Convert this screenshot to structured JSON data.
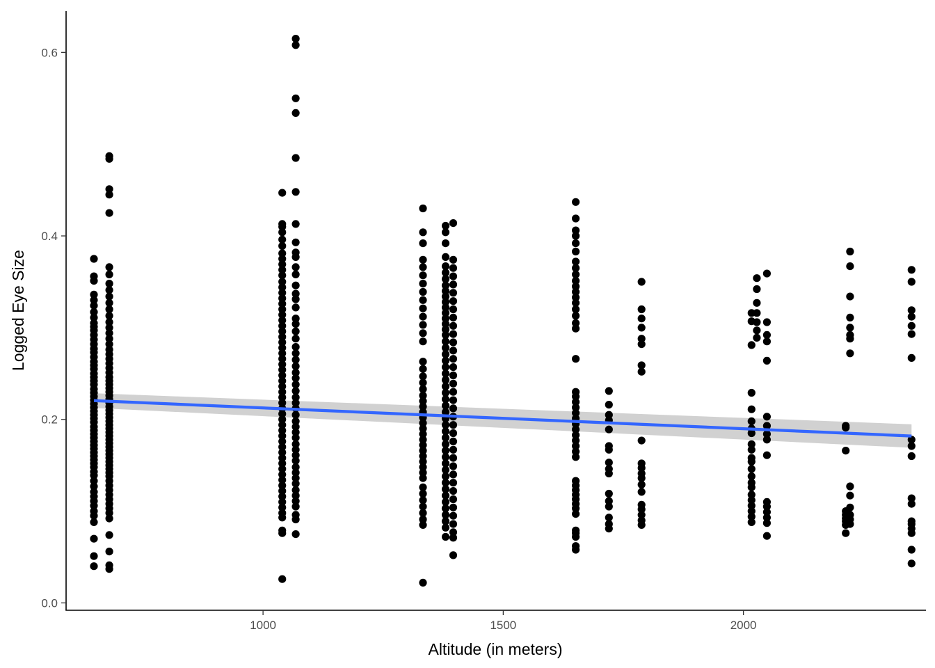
{
  "chart_data": {
    "type": "scatter",
    "title": "",
    "xlabel": "Altitude (in meters)",
    "ylabel": "Logged Eye Size",
    "xlim": [
      590,
      2380
    ],
    "ylim": [
      -0.008,
      0.645
    ],
    "x_ticks": [
      1000,
      1500,
      2000
    ],
    "x_tick_labels": [
      "1000",
      "1500",
      "2000"
    ],
    "y_ticks": [
      0.0,
      0.2,
      0.4,
      0.6
    ],
    "y_tick_labels": [
      "0.0",
      "0.2",
      "0.4",
      "0.6"
    ],
    "grid": false,
    "legend": "none",
    "point_color": "#000000",
    "groups": [
      {
        "x": 648,
        "y": [
          0.375,
          0.356,
          0.351,
          0.336,
          0.33,
          0.324,
          0.317,
          0.311,
          0.305,
          0.301,
          0.297,
          0.292,
          0.287,
          0.282,
          0.277,
          0.273,
          0.268,
          0.263,
          0.259,
          0.255,
          0.25,
          0.246,
          0.242,
          0.238,
          0.233,
          0.229,
          0.225,
          0.221,
          0.217,
          0.213,
          0.209,
          0.205,
          0.201,
          0.197,
          0.192,
          0.188,
          0.184,
          0.18,
          0.176,
          0.172,
          0.168,
          0.164,
          0.16,
          0.156,
          0.152,
          0.148,
          0.143,
          0.139,
          0.133,
          0.127,
          0.121,
          0.116,
          0.111,
          0.106,
          0.1,
          0.095,
          0.088,
          0.07,
          0.051,
          0.04
        ]
      },
      {
        "x": 680,
        "y": [
          0.487,
          0.484,
          0.451,
          0.445,
          0.425,
          0.366,
          0.358,
          0.348,
          0.341,
          0.334,
          0.327,
          0.32,
          0.313,
          0.306,
          0.3,
          0.294,
          0.288,
          0.282,
          0.276,
          0.271,
          0.266,
          0.261,
          0.256,
          0.251,
          0.246,
          0.242,
          0.238,
          0.234,
          0.23,
          0.226,
          0.222,
          0.218,
          0.214,
          0.21,
          0.206,
          0.202,
          0.198,
          0.194,
          0.19,
          0.186,
          0.182,
          0.178,
          0.174,
          0.17,
          0.166,
          0.162,
          0.158,
          0.154,
          0.15,
          0.146,
          0.142,
          0.138,
          0.133,
          0.128,
          0.123,
          0.118,
          0.113,
          0.108,
          0.103,
          0.098,
          0.092,
          0.074,
          0.056,
          0.041,
          0.037
        ]
      },
      {
        "x": 1040,
        "y": [
          0.447,
          0.413,
          0.41,
          0.404,
          0.396,
          0.389,
          0.381,
          0.375,
          0.369,
          0.363,
          0.357,
          0.35,
          0.344,
          0.338,
          0.332,
          0.326,
          0.32,
          0.314,
          0.308,
          0.302,
          0.296,
          0.29,
          0.284,
          0.278,
          0.272,
          0.266,
          0.26,
          0.254,
          0.248,
          0.242,
          0.236,
          0.23,
          0.224,
          0.218,
          0.212,
          0.206,
          0.2,
          0.194,
          0.188,
          0.182,
          0.176,
          0.17,
          0.164,
          0.158,
          0.152,
          0.146,
          0.14,
          0.134,
          0.128,
          0.122,
          0.116,
          0.11,
          0.104,
          0.098,
          0.093,
          0.079,
          0.076,
          0.026
        ]
      },
      {
        "x": 1068,
        "y": [
          0.615,
          0.608,
          0.55,
          0.534,
          0.485,
          0.448,
          0.413,
          0.393,
          0.382,
          0.377,
          0.366,
          0.358,
          0.346,
          0.337,
          0.331,
          0.322,
          0.31,
          0.304,
          0.296,
          0.288,
          0.279,
          0.272,
          0.265,
          0.258,
          0.251,
          0.245,
          0.238,
          0.231,
          0.224,
          0.218,
          0.212,
          0.205,
          0.198,
          0.192,
          0.186,
          0.18,
          0.173,
          0.167,
          0.161,
          0.155,
          0.148,
          0.142,
          0.136,
          0.13,
          0.123,
          0.117,
          0.111,
          0.105,
          0.096,
          0.091,
          0.075
        ]
      },
      {
        "x": 1333,
        "y": [
          0.43,
          0.404,
          0.392,
          0.374,
          0.366,
          0.357,
          0.348,
          0.339,
          0.33,
          0.321,
          0.312,
          0.303,
          0.294,
          0.285,
          0.263,
          0.255,
          0.247,
          0.24,
          0.233,
          0.226,
          0.22,
          0.214,
          0.208,
          0.202,
          0.196,
          0.19,
          0.184,
          0.178,
          0.172,
          0.166,
          0.16,
          0.154,
          0.148,
          0.142,
          0.136,
          0.126,
          0.119,
          0.112,
          0.105,
          0.098,
          0.091,
          0.085,
          0.022
        ]
      },
      {
        "x": 1380,
        "y": [
          0.411,
          0.404,
          0.392,
          0.377,
          0.367,
          0.36,
          0.353,
          0.346,
          0.34,
          0.334,
          0.328,
          0.322,
          0.316,
          0.31,
          0.304,
          0.298,
          0.292,
          0.285,
          0.278,
          0.271,
          0.264,
          0.257,
          0.25,
          0.243,
          0.236,
          0.229,
          0.222,
          0.215,
          0.208,
          0.201,
          0.194,
          0.187,
          0.18,
          0.173,
          0.166,
          0.159,
          0.152,
          0.145,
          0.138,
          0.131,
          0.124,
          0.117,
          0.11,
          0.103,
          0.096,
          0.089,
          0.082,
          0.072
        ]
      },
      {
        "x": 1396,
        "y": [
          0.414,
          0.374,
          0.365,
          0.356,
          0.347,
          0.338,
          0.329,
          0.32,
          0.311,
          0.302,
          0.293,
          0.284,
          0.275,
          0.266,
          0.257,
          0.248,
          0.239,
          0.23,
          0.221,
          0.212,
          0.203,
          0.194,
          0.185,
          0.176,
          0.167,
          0.158,
          0.149,
          0.14,
          0.131,
          0.122,
          0.113,
          0.104,
          0.095,
          0.086,
          0.077,
          0.071,
          0.052
        ]
      },
      {
        "x": 1651,
        "y": [
          0.437,
          0.419,
          0.406,
          0.4,
          0.392,
          0.383,
          0.372,
          0.365,
          0.358,
          0.351,
          0.345,
          0.339,
          0.333,
          0.327,
          0.32,
          0.313,
          0.305,
          0.299,
          0.266,
          0.23,
          0.225,
          0.219,
          0.213,
          0.207,
          0.201,
          0.195,
          0.189,
          0.183,
          0.177,
          0.171,
          0.165,
          0.159,
          0.133,
          0.128,
          0.123,
          0.118,
          0.113,
          0.108,
          0.103,
          0.097,
          0.079,
          0.076,
          0.072,
          0.062,
          0.058
        ]
      },
      {
        "x": 1720,
        "y": [
          0.231,
          0.216,
          0.205,
          0.199,
          0.189,
          0.171,
          0.167,
          0.153,
          0.146,
          0.141,
          0.119,
          0.111,
          0.105,
          0.093,
          0.086,
          0.081
        ]
      },
      {
        "x": 1788,
        "y": [
          0.35,
          0.32,
          0.31,
          0.3,
          0.288,
          0.282,
          0.259,
          0.252,
          0.177,
          0.152,
          0.147,
          0.141,
          0.136,
          0.129,
          0.121,
          0.107,
          0.102,
          0.096,
          0.09,
          0.085
        ]
      },
      {
        "x": 2017,
        "y": [
          0.316,
          0.307,
          0.281,
          0.229,
          0.211,
          0.198,
          0.19,
          0.185,
          0.173,
          0.167,
          0.158,
          0.154,
          0.146,
          0.138,
          0.131,
          0.126,
          0.118,
          0.112,
          0.106,
          0.1,
          0.094,
          0.088
        ]
      },
      {
        "x": 2028,
        "y": [
          0.354,
          0.342,
          0.327,
          0.316,
          0.306,
          0.297,
          0.289
        ]
      },
      {
        "x": 2049,
        "y": [
          0.359,
          0.306,
          0.292,
          0.285,
          0.264,
          0.203,
          0.193,
          0.184,
          0.178,
          0.161,
          0.11,
          0.105,
          0.099,
          0.093,
          0.087,
          0.073
        ]
      },
      {
        "x": 2213,
        "y": [
          0.193,
          0.191,
          0.166,
          0.1,
          0.096,
          0.092,
          0.089,
          0.085,
          0.076
        ]
      },
      {
        "x": 2222,
        "y": [
          0.383,
          0.367,
          0.334,
          0.311,
          0.3,
          0.292,
          0.288,
          0.272,
          0.127,
          0.117,
          0.104,
          0.096,
          0.091,
          0.086
        ]
      },
      {
        "x": 2350,
        "y": [
          0.363,
          0.35,
          0.319,
          0.312,
          0.302,
          0.293,
          0.267,
          0.178,
          0.171,
          0.16,
          0.114,
          0.108,
          0.089,
          0.086,
          0.081,
          0.076,
          0.058,
          0.043
        ]
      }
    ],
    "trend": {
      "type": "linear",
      "color": "#3366FF",
      "band_color": "#cccccc",
      "x": [
        648,
        2350
      ],
      "y": [
        0.2205,
        0.1819
      ],
      "ci_upper": [
        0.2285,
        0.1947
      ],
      "ci_lower": [
        0.2125,
        0.1691
      ]
    }
  }
}
